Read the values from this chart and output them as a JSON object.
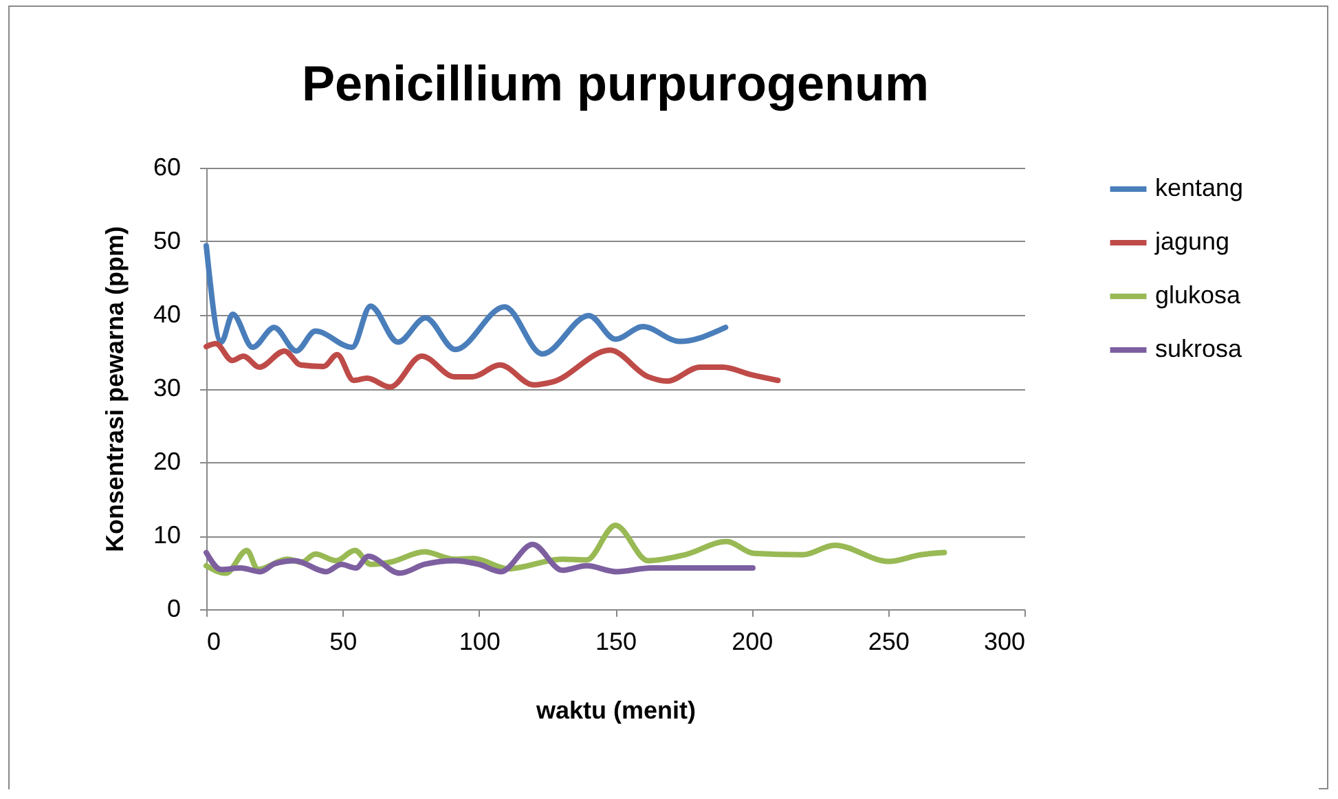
{
  "chart_data": {
    "type": "line",
    "title": "Penicillium purpurogenum",
    "xlabel": "waktu (menit)",
    "ylabel": "Konsentrasi pewarna (ppm)",
    "xlim": [
      0,
      300
    ],
    "xticks": [
      0,
      50,
      100,
      150,
      200,
      250,
      300
    ],
    "ylim": [
      0,
      60
    ],
    "yticks": [
      0,
      10,
      20,
      30,
      40,
      50,
      60
    ],
    "grid": "y",
    "legend": "right",
    "marker": "none",
    "line_style": "solid",
    "series": [
      {
        "name": "kentang",
        "color": "#4a7ebb",
        "x": [
          0,
          5.5,
          9.7,
          17,
          24.9,
          33,
          40,
          53.5,
          60.2,
          70.3,
          80.4,
          91.3,
          109.4,
          123.2,
          140.3,
          150,
          160.1,
          173.6,
          190.4
        ],
        "values": [
          49.4,
          36.3,
          40.1,
          35.6,
          38.3,
          35.1,
          37.8,
          35.6,
          41.2,
          36.3,
          39.6,
          35.3,
          41.1,
          34.7,
          39.9,
          36.7,
          38.4,
          36.4,
          38.3
        ]
      },
      {
        "name": "jagung",
        "color": "#be4b48",
        "x": [
          0,
          3.5,
          9.5,
          13.6,
          19.5,
          28.7,
          34.6,
          43,
          48,
          54,
          59,
          67.4,
          79,
          91,
          97.6,
          107.7,
          120,
          127,
          148,
          162,
          169,
          181,
          189.4,
          199.5,
          209.6
        ],
        "values": [
          35.7,
          36.1,
          33.8,
          34.4,
          32.9,
          35.1,
          33.2,
          33.0,
          34.6,
          31.1,
          31.4,
          30.2,
          34.4,
          31.6,
          31.6,
          33.2,
          30.5,
          30.9,
          35.2,
          31.6,
          31.0,
          32.9,
          32.9,
          31.9,
          31.1
        ]
      },
      {
        "name": "glukosa",
        "color": "#98b954",
        "x": [
          0,
          7.2,
          14.9,
          18.9,
          29.7,
          35,
          40,
          47.7,
          54.5,
          60.3,
          67.5,
          80,
          90.9,
          98,
          110.7,
          130.5,
          139.5,
          150,
          162,
          175.5,
          190.8,
          200.7,
          218.7,
          230.4,
          250.2,
          262,
          270.6
        ],
        "values": [
          5.9,
          4.9,
          8.0,
          5.4,
          6.8,
          6.4,
          7.5,
          6.6,
          8.0,
          6.1,
          6.4,
          7.8,
          6.8,
          6.9,
          5.5,
          6.8,
          6.7,
          11.4,
          6.6,
          7.4,
          9.2,
          7.6,
          7.4,
          8.7,
          6.5,
          7.4,
          7.7
        ]
      },
      {
        "name": "sukrosa",
        "color": "#7d5fa0",
        "x": [
          0,
          5.4,
          12.6,
          19.8,
          25.2,
          32.4,
          44,
          49.5,
          54.9,
          59.4,
          71,
          80,
          90.9,
          99.9,
          108,
          119.7,
          130.5,
          139.5,
          150.3,
          163,
          200.4
        ],
        "values": [
          7.7,
          5.4,
          5.6,
          5.1,
          6.2,
          6.6,
          5.1,
          6.1,
          5.6,
          7.2,
          4.9,
          6.1,
          6.6,
          6.1,
          5.1,
          8.8,
          5.3,
          5.9,
          5.1,
          5.6,
          5.6
        ]
      }
    ]
  }
}
